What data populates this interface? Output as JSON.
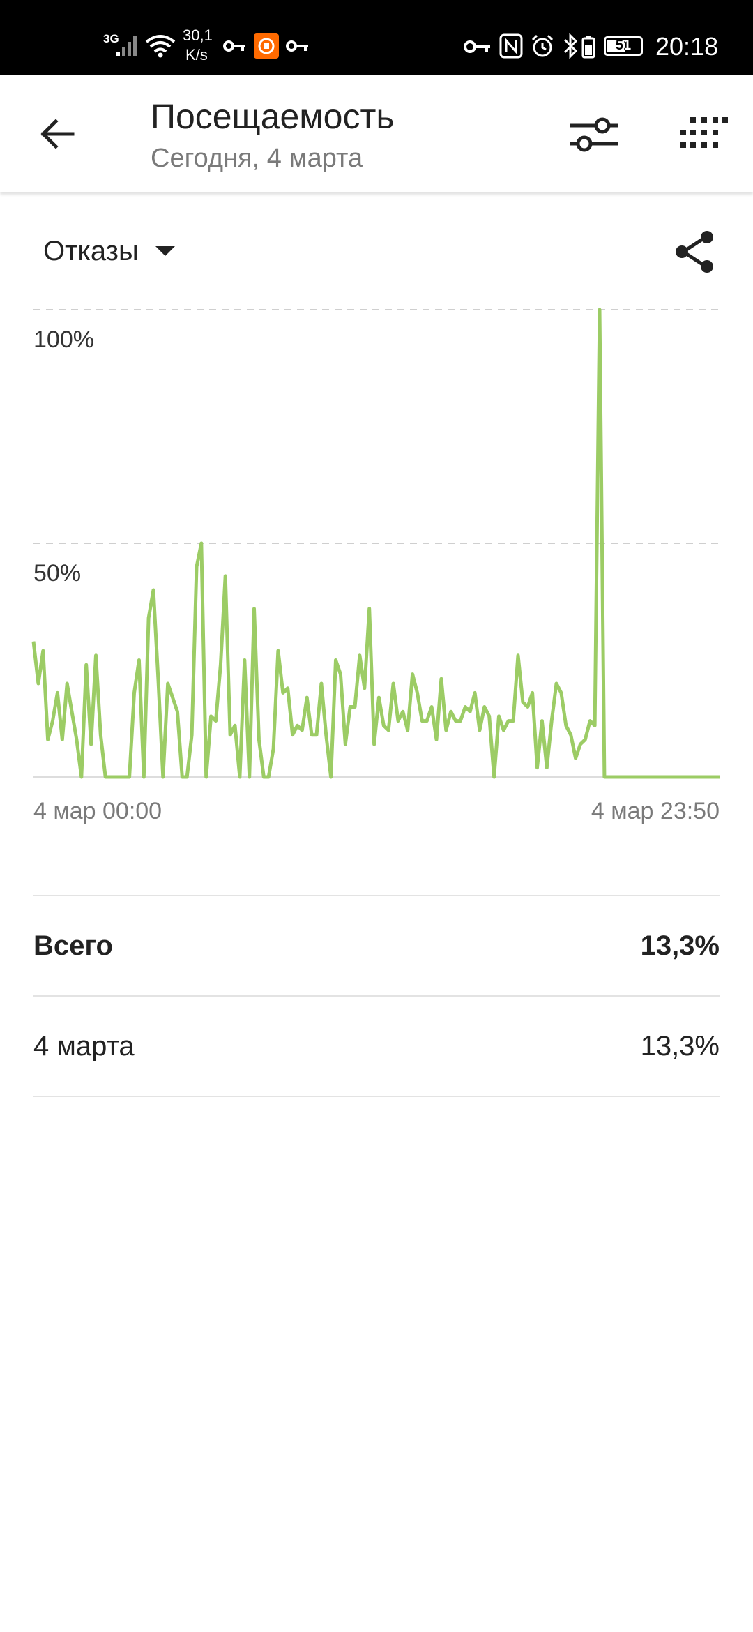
{
  "status_bar": {
    "network": "3G",
    "speed_value": "30,1",
    "speed_unit": "K/s",
    "battery": "51",
    "time": "20:18",
    "icons": [
      "signal-icon",
      "wifi-icon",
      "key-icon",
      "mi-app-icon",
      "key-icon",
      "key-icon",
      "nfc-icon",
      "alarm-icon",
      "bluetooth-icon",
      "battery-icon"
    ]
  },
  "header": {
    "title": "Посещаемость",
    "subtitle": "Сегодня, 4 марта",
    "icons": [
      "back-arrow-icon",
      "filter-sliders-icon",
      "grid-menu-icon"
    ]
  },
  "metric": {
    "selected": "Отказы",
    "icons": [
      "dropdown-triangle-icon",
      "share-icon"
    ]
  },
  "chart_data": {
    "type": "line",
    "title": "",
    "xlabel": "",
    "ylabel": "",
    "x_start_label": "4 мар 00:00",
    "x_end_label": "4 мар 23:50",
    "yticks": [
      {
        "value": 100,
        "label": "100%"
      },
      {
        "value": 50,
        "label": "50%"
      }
    ],
    "ylim": [
      0,
      100
    ],
    "grid": true,
    "line_color": "#9ccc65",
    "series": [
      {
        "values": [
          29,
          20,
          27,
          8,
          12,
          18,
          8,
          20,
          14,
          8,
          0,
          24,
          7,
          26,
          9,
          0,
          0,
          0,
          0,
          0,
          0,
          18,
          25,
          0,
          34,
          40,
          21,
          0,
          20,
          17,
          14,
          0,
          0,
          9,
          45,
          50,
          0,
          13,
          12,
          24,
          43,
          9,
          11,
          0,
          25,
          0,
          36,
          8,
          0,
          0,
          6,
          27,
          18,
          19,
          9,
          11,
          10,
          17,
          9,
          9,
          20,
          9,
          0,
          25,
          22,
          7,
          15,
          15,
          26,
          19,
          36,
          7,
          17,
          11,
          10,
          20,
          12,
          14,
          10,
          22,
          18,
          12,
          12,
          15,
          8,
          21,
          10,
          14,
          12,
          12,
          15,
          14,
          18,
          10,
          15,
          13,
          0,
          13,
          10,
          12,
          12,
          26,
          16,
          15,
          18,
          2,
          12,
          2,
          12,
          20,
          18,
          11,
          9,
          4,
          7,
          8,
          12,
          11,
          100,
          0,
          0,
          0,
          0,
          0,
          0,
          0,
          0,
          0,
          0,
          0,
          0,
          0,
          0,
          0,
          0,
          0,
          0,
          0,
          0,
          0,
          0,
          0,
          0,
          0
        ]
      }
    ]
  },
  "summary": {
    "rows": [
      {
        "label": "Всего",
        "value": "13,3%"
      },
      {
        "label": "4 марта",
        "value": "13,3%"
      }
    ]
  }
}
